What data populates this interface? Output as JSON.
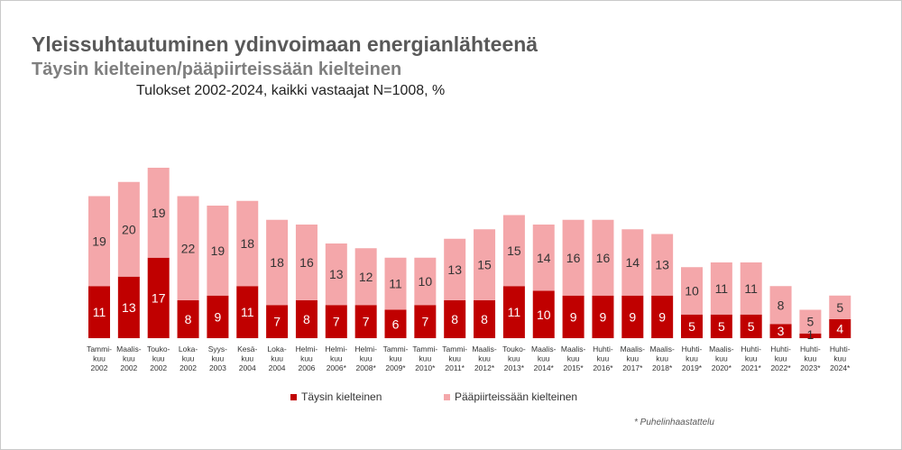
{
  "title": "Yleissuhtautuminen ydinvoimaan energianlähteenä",
  "subtitle": "Täysin kielteinen/pääpiirteissään kielteinen",
  "subtitle2": "Tulokset 2002-2024, kaikki vastaajat N=1008, %",
  "footnote": "* Puhelinhaastattelu",
  "colors": {
    "fully_negative": "#c00000",
    "mostly_negative": "#f4a7aa",
    "label_on_dark": "#ffffff",
    "label_on_light": "#333333"
  },
  "chart_data": {
    "type": "bar",
    "stacked": true,
    "categories": [
      [
        "Tammi-",
        "kuu",
        "2002"
      ],
      [
        "Maalis-",
        "kuu",
        "2002"
      ],
      [
        "Touko-",
        "kuu",
        "2002"
      ],
      [
        "Loka-",
        "kuu",
        "2002"
      ],
      [
        "Syys-",
        "kuu",
        "2003"
      ],
      [
        "Kesä-",
        "kuu",
        "2004"
      ],
      [
        "Loka-",
        "kuu",
        "2004"
      ],
      [
        "Helmi-",
        "kuu",
        "2006"
      ],
      [
        "Helmi-",
        "kuu",
        "2006*"
      ],
      [
        "Helmi-",
        "kuu",
        "2008*"
      ],
      [
        "Tammi-",
        "kuu",
        "2009*"
      ],
      [
        "Tammi-",
        "kuu",
        "2010*"
      ],
      [
        "Tammi-",
        "kuu",
        "2011*"
      ],
      [
        "Maalis-",
        "kuu",
        "2012*"
      ],
      [
        "Touko-",
        "kuu",
        "2013*"
      ],
      [
        "Maalis-",
        "kuu",
        "2014*"
      ],
      [
        "Maalis-",
        "kuu",
        "2015*"
      ],
      [
        "Huhti-",
        "kuu",
        "2016*"
      ],
      [
        "Maalis-",
        "kuu",
        "2017*"
      ],
      [
        "Maalis-",
        "kuu",
        "2018*"
      ],
      [
        "Huhti-",
        "kuu",
        "2019*"
      ],
      [
        "Maalis-",
        "kuu",
        "2020*"
      ],
      [
        "Huhti-",
        "kuu",
        "2021*"
      ],
      [
        "Huhti-",
        "kuu",
        "2022*"
      ],
      [
        "Huhti-",
        "kuu",
        "2023*"
      ],
      [
        "Huhti-",
        "kuu",
        "2024*"
      ]
    ],
    "series": [
      {
        "name": "Täysin kielteinen",
        "color": "#c00000",
        "values": [
          11,
          13,
          17,
          8,
          9,
          11,
          7,
          8,
          7,
          7,
          6,
          7,
          8,
          8,
          11,
          10,
          9,
          9,
          9,
          9,
          5,
          5,
          5,
          3,
          1,
          4
        ]
      },
      {
        "name": "Pääpiirteissään kielteinen",
        "color": "#f4a7aa",
        "values": [
          19,
          20,
          19,
          22,
          19,
          18,
          18,
          16,
          13,
          12,
          11,
          10,
          13,
          15,
          15,
          14,
          16,
          16,
          14,
          13,
          10,
          11,
          11,
          8,
          5,
          5
        ]
      }
    ],
    "ylim": [
      0,
      40
    ],
    "grid": false,
    "legend_position": "bottom"
  }
}
